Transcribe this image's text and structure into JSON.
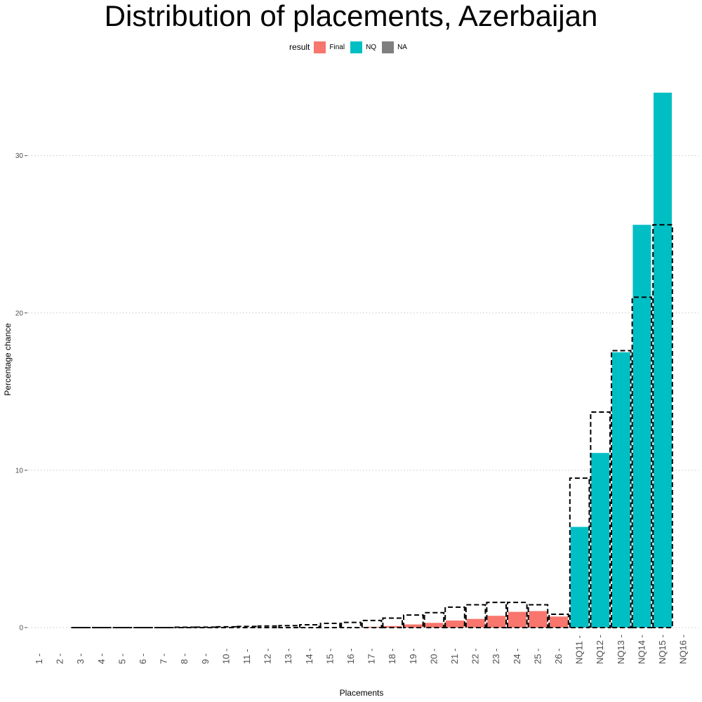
{
  "chart_data": {
    "type": "bar",
    "title": "Distribution of placements, Azerbaijan",
    "xlabel": "Placements",
    "ylabel": "Percentage chance",
    "ylim": [
      0,
      34
    ],
    "y_ticks": [
      0,
      10,
      20,
      30
    ],
    "grid": "horizontal dotted",
    "legend": {
      "title": "result",
      "placement": "top",
      "entries": [
        {
          "label": "Final",
          "color": "#F8766D"
        },
        {
          "label": "NQ",
          "color": "#00BFC4"
        },
        {
          "label": "NA",
          "color": "#7F7F7F"
        }
      ]
    },
    "categories": [
      "1",
      "2",
      "3",
      "4",
      "5",
      "6",
      "7",
      "8",
      "9",
      "10",
      "11",
      "12",
      "13",
      "14",
      "15",
      "16",
      "17",
      "18",
      "19",
      "20",
      "21",
      "22",
      "23",
      "24",
      "25",
      "26",
      "NQ11",
      "NQ12",
      "NQ13",
      "NQ14",
      "NQ15",
      "NQ16"
    ],
    "series": [
      {
        "name": "result",
        "results": [
          "NA",
          "NA",
          "Final",
          "Final",
          "Final",
          "Final",
          "Final",
          "Final",
          "Final",
          "Final",
          "Final",
          "Final",
          "Final",
          "Final",
          "Final",
          "Final",
          "Final",
          "Final",
          "Final",
          "Final",
          "Final",
          "Final",
          "Final",
          "Final",
          "Final",
          "Final",
          "NQ",
          "NQ",
          "NQ",
          "NQ",
          "NQ",
          "NA"
        ],
        "values": [
          0,
          0,
          0,
          0,
          0,
          0,
          0,
          0,
          0,
          0,
          0,
          0,
          0,
          0,
          0,
          0,
          0.05,
          0.1,
          0.2,
          0.3,
          0.45,
          0.55,
          0.75,
          1.0,
          1.05,
          0.7,
          6.4,
          11.1,
          17.5,
          25.6,
          34.0,
          0
        ]
      },
      {
        "name": "comparison (dashed outline)",
        "values": [
          0,
          0,
          0,
          0,
          0,
          0,
          0,
          0.02,
          0.03,
          0.05,
          0.07,
          0.1,
          0.12,
          0.18,
          0.27,
          0.33,
          0.45,
          0.6,
          0.8,
          0.95,
          1.3,
          1.45,
          1.6,
          1.6,
          1.45,
          0.85,
          9.5,
          13.7,
          17.6,
          21.0,
          25.6,
          0
        ]
      }
    ]
  }
}
